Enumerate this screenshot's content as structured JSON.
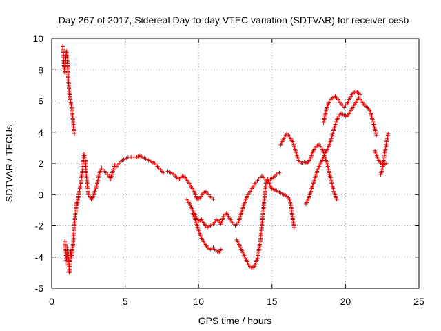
{
  "chart_data": {
    "type": "scatter",
    "title": "Day 267 of 2017, Sidereal Day-to-day VTEC variation (SDTVAR) for receiver cesb",
    "xlabel": "GPS time / hours",
    "ylabel": "SDTVAR / TECUs",
    "xlim": [
      0,
      25
    ],
    "ylim": [
      -6,
      10
    ],
    "xticks": [
      0,
      5,
      10,
      15,
      20,
      25
    ],
    "yticks": [
      -6,
      -4,
      -2,
      0,
      2,
      4,
      6,
      8,
      10
    ],
    "grid": true,
    "marker": "plus",
    "color": "#e00000",
    "series": [
      {
        "name": "s1",
        "x": [
          0.75,
          0.8,
          0.85,
          0.9,
          0.95,
          1.0,
          1.05,
          1.1,
          1.15,
          1.2,
          1.25,
          1.3,
          1.35,
          1.4,
          1.45,
          1.5,
          1.55
        ],
        "y": [
          9.5,
          9.0,
          8.2,
          7.8,
          8.6,
          9.2,
          8.8,
          8.0,
          7.2,
          6.5,
          6.0,
          6.0,
          5.6,
          5.2,
          4.8,
          4.2,
          3.9
        ]
      },
      {
        "name": "s2",
        "x": [
          0.9,
          0.95,
          1.0,
          1.05,
          1.1,
          1.15,
          1.2,
          1.25,
          1.3,
          1.35,
          1.4,
          1.45,
          1.5,
          1.55,
          1.6,
          1.65,
          1.7,
          1.75,
          1.8,
          1.9,
          2.0,
          2.1,
          2.2,
          2.3,
          2.35,
          2.4,
          2.45,
          2.5,
          2.6,
          2.7,
          2.8,
          2.9,
          3.0,
          3.1,
          3.2,
          3.3,
          3.4,
          3.5,
          3.6,
          3.7,
          3.8,
          3.9,
          4.0,
          4.1,
          4.2,
          4.3,
          4.4
        ],
        "y": [
          -3.0,
          -3.6,
          -4.2,
          -3.4,
          -4.5,
          -3.8,
          -5.0,
          -4.2,
          -3.6,
          -4.0,
          -3.5,
          -3.3,
          -2.4,
          -2.0,
          -1.4,
          -1.0,
          -0.5,
          -0.6,
          -0.2,
          0.3,
          0.9,
          1.6,
          2.6,
          2.2,
          1.4,
          0.8,
          0.4,
          0.0,
          -0.1,
          -0.3,
          -0.2,
          0.1,
          0.4,
          0.7,
          1.2,
          1.5,
          1.7,
          1.6,
          1.5,
          1.4,
          1.3,
          1.2,
          1.0,
          1.3,
          1.6,
          1.9,
          1.8
        ]
      },
      {
        "name": "s3",
        "x": [
          4.4,
          4.6,
          4.8,
          5.0,
          5.2,
          5.4,
          5.6,
          5.8,
          6.0,
          6.2,
          6.4,
          6.6,
          6.8,
          7.0,
          7.2,
          7.4,
          7.6
        ],
        "y": [
          1.8,
          2.0,
          2.2,
          2.3,
          2.4,
          2.4,
          2.4,
          2.4,
          2.5,
          2.4,
          2.3,
          2.2,
          2.1,
          2.0,
          1.8,
          1.6,
          1.4
        ]
      },
      {
        "name": "s4",
        "x": [
          7.9,
          8.1,
          8.3,
          8.5,
          8.7,
          8.9,
          9.1,
          9.3,
          9.5,
          9.7,
          9.9,
          10.1,
          10.3,
          10.5,
          10.7,
          10.9,
          11.0
        ],
        "y": [
          1.5,
          1.4,
          1.3,
          1.1,
          1.0,
          1.2,
          1.1,
          0.8,
          0.5,
          0.2,
          -0.3,
          -0.2,
          0.1,
          0.2,
          0.0,
          -0.2,
          -0.3
        ]
      },
      {
        "name": "s5",
        "x": [
          9.2,
          9.4,
          9.6,
          9.8,
          10.0,
          10.2,
          10.4,
          10.6,
          10.8,
          11.0,
          11.2,
          11.4,
          11.5,
          11.7,
          11.9,
          12.1,
          12.3,
          12.5,
          12.7,
          12.9,
          13.1,
          13.3,
          13.5,
          13.7,
          13.9,
          14.1,
          14.3,
          14.5,
          14.7,
          14.9,
          15.1,
          15.3,
          15.5
        ],
        "y": [
          -0.3,
          -0.6,
          -1.0,
          -1.4,
          -1.7,
          -1.6,
          -1.9,
          -2.1,
          -2.0,
          -1.9,
          -1.6,
          -1.7,
          -1.9,
          -1.4,
          -1.2,
          -1.5,
          -1.8,
          -2.0,
          -1.8,
          -1.2,
          -0.6,
          -0.1,
          0.2,
          0.5,
          0.8,
          1.0,
          1.2,
          1.0,
          0.8,
          1.0,
          1.1,
          1.3,
          1.4
        ]
      },
      {
        "name": "s6",
        "x": [
          9.6,
          9.8,
          10.0,
          10.2,
          10.4,
          10.6,
          10.8,
          11.0,
          11.2,
          11.4,
          11.5
        ],
        "y": [
          -1.2,
          -1.7,
          -2.3,
          -2.8,
          -3.1,
          -3.4,
          -3.5,
          -3.4,
          -3.6,
          -3.7,
          -3.5
        ]
      },
      {
        "name": "s7",
        "x": [
          12.6,
          12.8,
          13.0,
          13.2,
          13.4,
          13.6,
          13.8,
          14.0,
          14.2,
          14.4,
          14.5,
          14.6,
          14.7,
          14.8,
          14.9,
          15.0
        ],
        "y": [
          -2.9,
          -3.3,
          -3.7,
          -4.1,
          -4.5,
          -4.7,
          -4.6,
          -4.1,
          -3.0,
          -1.0,
          0.0,
          0.8,
          1.0,
          0.8,
          0.5,
          0.4
        ]
      },
      {
        "name": "s8",
        "x": [
          15.0,
          15.2,
          15.4,
          15.6,
          15.8,
          16.0,
          16.2,
          16.3,
          16.4,
          16.5
        ],
        "y": [
          0.4,
          0.3,
          0.2,
          0.1,
          0.0,
          -0.1,
          -0.3,
          -0.8,
          -1.5,
          -2.1
        ]
      },
      {
        "name": "s9",
        "x": [
          15.6,
          15.8,
          16.0,
          16.2,
          16.4,
          16.6,
          16.8,
          17.0,
          17.2,
          17.4,
          17.6,
          17.8,
          18.0,
          18.2,
          18.4,
          18.6,
          18.8,
          19.0,
          19.2,
          19.4
        ],
        "y": [
          3.2,
          3.6,
          3.9,
          3.7,
          3.4,
          2.8,
          2.2,
          2.0,
          2.1,
          2.0,
          2.3,
          2.8,
          3.1,
          3.2,
          3.0,
          2.4,
          1.8,
          1.0,
          0.2,
          -0.3
        ]
      },
      {
        "name": "s10",
        "x": [
          17.3,
          17.5,
          17.7,
          17.9,
          18.1,
          18.3,
          18.5,
          18.7,
          18.9,
          19.1,
          19.3,
          19.5,
          19.7,
          19.9,
          20.1,
          20.3,
          20.5,
          20.7,
          20.9,
          21.1,
          21.3,
          21.5,
          21.7,
          21.9,
          22.1
        ],
        "y": [
          -0.6,
          -0.2,
          0.4,
          1.0,
          1.6,
          2.0,
          2.4,
          2.8,
          3.2,
          3.8,
          4.5,
          5.0,
          5.2,
          5.1,
          5.0,
          5.3,
          5.6,
          5.9,
          6.2,
          6.0,
          5.7,
          5.6,
          5.3,
          4.6,
          3.8
        ]
      },
      {
        "name": "s11",
        "x": [
          18.5,
          18.7,
          18.9,
          19.1,
          19.3,
          19.5,
          19.7,
          19.9,
          20.1,
          20.3,
          20.5,
          20.7,
          20.9,
          21.0
        ],
        "y": [
          4.6,
          5.5,
          6.0,
          6.2,
          6.3,
          6.1,
          5.8,
          5.6,
          5.8,
          6.2,
          6.5,
          6.6,
          6.5,
          6.4
        ]
      },
      {
        "name": "s12",
        "x": [
          22.0,
          22.2,
          22.4,
          22.6,
          22.8
        ],
        "y": [
          2.8,
          2.3,
          2.0,
          1.9,
          2.0
        ]
      },
      {
        "name": "s13",
        "x": [
          22.4,
          22.5,
          22.6,
          22.7,
          22.8,
          22.9
        ],
        "y": [
          1.3,
          1.6,
          2.2,
          2.8,
          3.4,
          3.9
        ]
      }
    ]
  }
}
